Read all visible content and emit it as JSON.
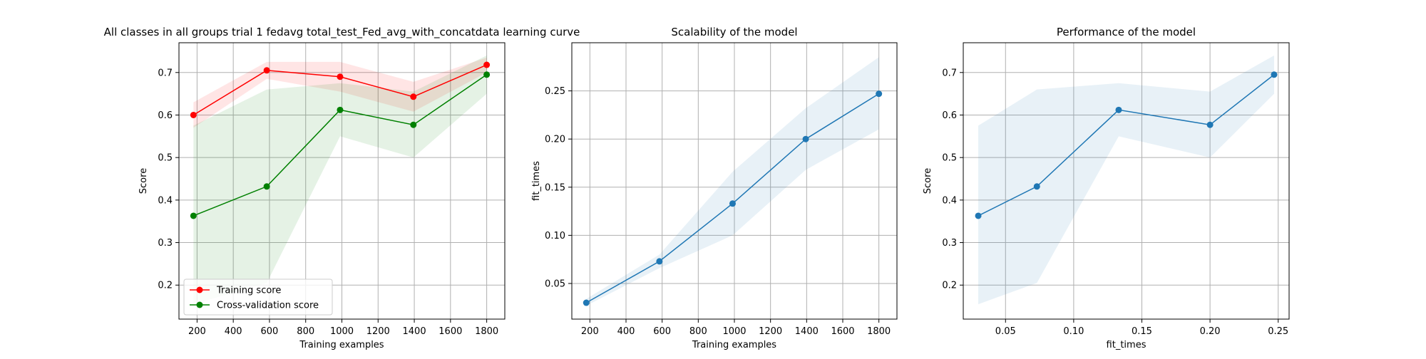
{
  "chart_data": [
    {
      "type": "line",
      "title": "All classes in all groups trial 1 fedavg total_test_Fed_avg_with_concatdata learning curve",
      "xlabel": "Training examples",
      "ylabel": "Score",
      "xlim": [
        100,
        1900
      ],
      "ylim": [
        0.12,
        0.77
      ],
      "xticks": [
        200,
        400,
        600,
        800,
        1000,
        1200,
        1400,
        1600,
        1800
      ],
      "yticks": [
        0.2,
        0.3,
        0.4,
        0.5,
        0.6,
        0.7
      ],
      "grid": true,
      "legend_position": "lower-left",
      "series": [
        {
          "name": "Training score",
          "color": "#ff0000",
          "x": [
            180,
            585,
            990,
            1395,
            1800
          ],
          "y": [
            0.6,
            0.705,
            0.69,
            0.643,
            0.718
          ],
          "lower": [
            0.57,
            0.685,
            0.655,
            0.608,
            0.7
          ],
          "upper": [
            0.63,
            0.725,
            0.725,
            0.678,
            0.735
          ]
        },
        {
          "name": "Cross-validation score",
          "color": "#008000",
          "x": [
            180,
            585,
            990,
            1395,
            1800
          ],
          "y": [
            0.363,
            0.432,
            0.612,
            0.577,
            0.695
          ],
          "lower": [
            0.155,
            0.205,
            0.55,
            0.5,
            0.65
          ],
          "upper": [
            0.575,
            0.66,
            0.675,
            0.655,
            0.74
          ]
        }
      ]
    },
    {
      "type": "line",
      "title": "Scalability of the model",
      "xlabel": "Training examples",
      "ylabel": "fit_times",
      "xlim": [
        100,
        1900
      ],
      "ylim": [
        0.013,
        0.3
      ],
      "xticks": [
        200,
        400,
        600,
        800,
        1000,
        1200,
        1400,
        1600,
        1800
      ],
      "yticks": [
        0.05,
        0.1,
        0.15,
        0.2,
        0.25
      ],
      "grid": true,
      "series": [
        {
          "color": "#1f77b4",
          "x": [
            180,
            585,
            990,
            1395,
            1800
          ],
          "y": [
            0.03,
            0.073,
            0.133,
            0.2,
            0.247
          ],
          "lower": [
            0.027,
            0.066,
            0.1,
            0.168,
            0.21
          ],
          "upper": [
            0.034,
            0.08,
            0.166,
            0.232,
            0.285
          ]
        }
      ]
    },
    {
      "type": "line",
      "title": "Performance of the model",
      "xlabel": "fit_times",
      "ylabel": "Score",
      "xlim": [
        0.019,
        0.258
      ],
      "ylim": [
        0.12,
        0.77
      ],
      "xticks": [
        0.05,
        0.1,
        0.15,
        0.2,
        0.25
      ],
      "yticks": [
        0.2,
        0.3,
        0.4,
        0.5,
        0.6,
        0.7
      ],
      "grid": true,
      "series": [
        {
          "color": "#1f77b4",
          "x": [
            0.03,
            0.073,
            0.133,
            0.2,
            0.247
          ],
          "y": [
            0.363,
            0.432,
            0.612,
            0.577,
            0.695
          ],
          "lower": [
            0.155,
            0.205,
            0.55,
            0.5,
            0.65
          ],
          "upper": [
            0.575,
            0.66,
            0.675,
            0.655,
            0.74
          ]
        }
      ]
    }
  ]
}
